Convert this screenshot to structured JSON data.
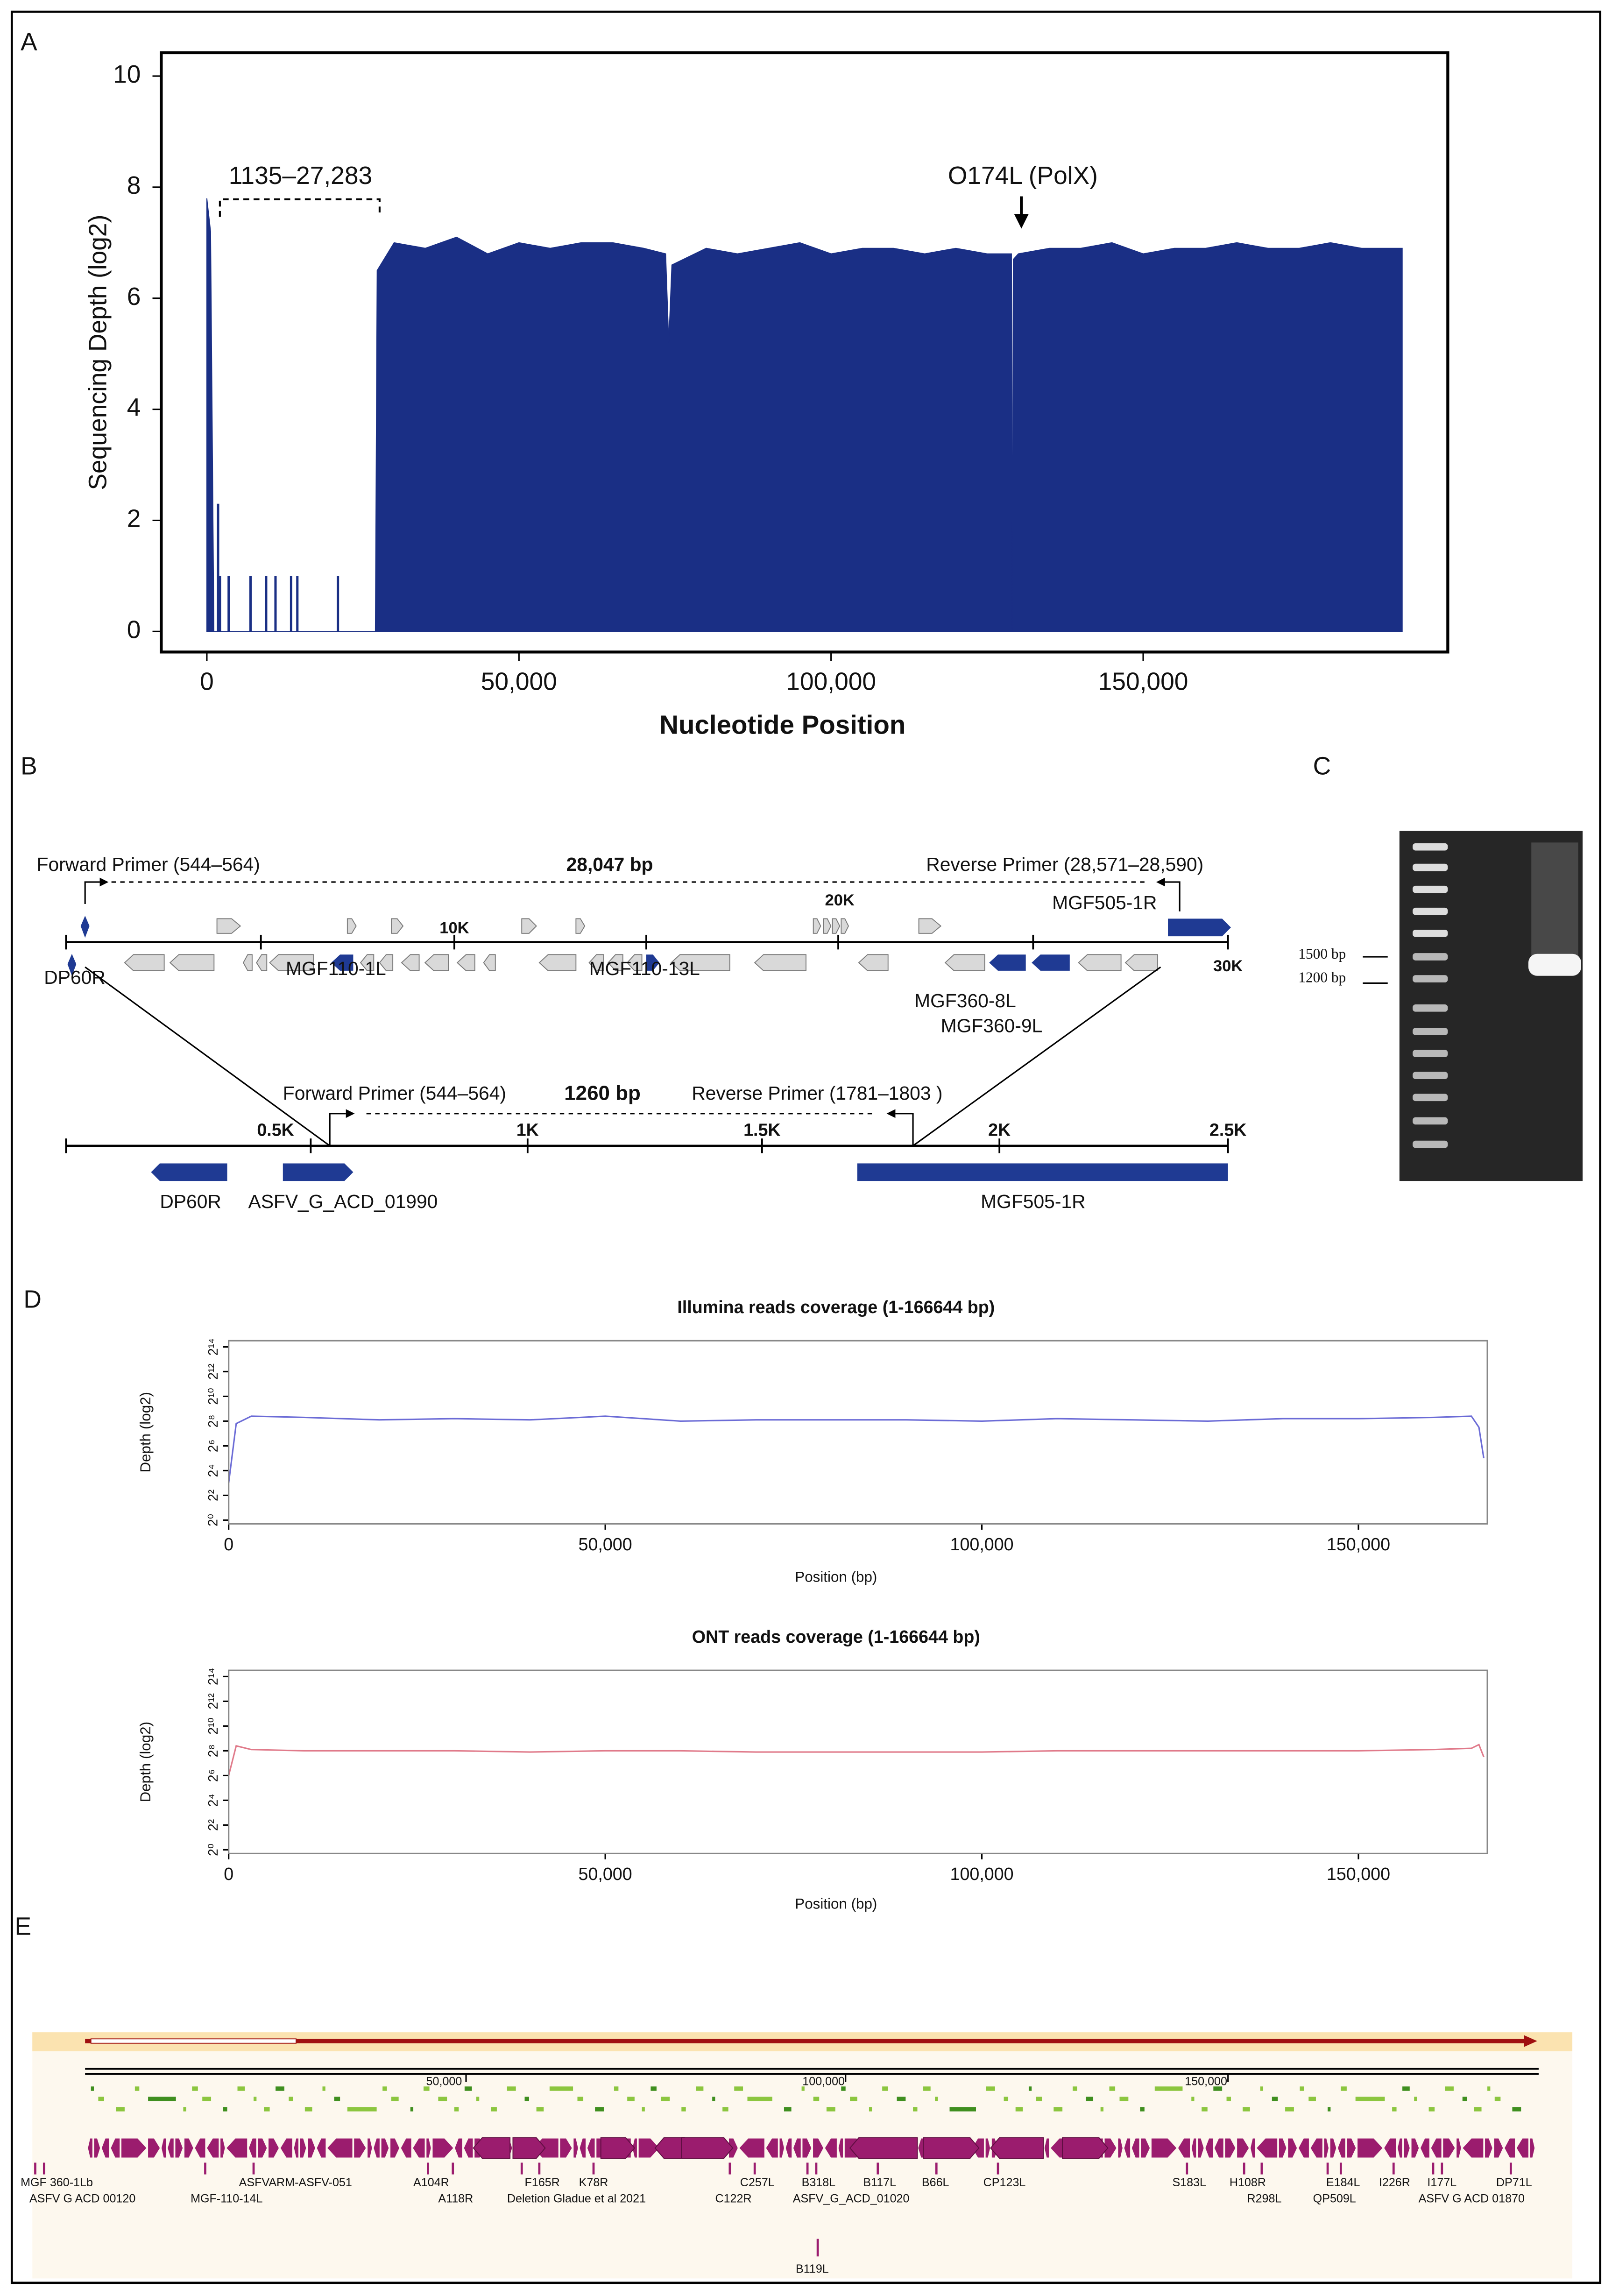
{
  "panel_labels": [
    "A",
    "B",
    "C",
    "D",
    "E"
  ],
  "chart_data": [
    {
      "type": "area",
      "color": "#1a2f85",
      "ylabel": "Sequencing Depth (log2)",
      "xlabel": "Nucleotide Position",
      "x": [
        0,
        600,
        1135,
        27000,
        27283,
        30000,
        35000,
        40000,
        45000,
        50000,
        55000,
        60000,
        65000,
        70000,
        73500,
        74000,
        74500,
        80000,
        85000,
        90000,
        95000,
        100000,
        105000,
        110000,
        115000,
        120000,
        125000,
        128900,
        129000,
        129200,
        130000,
        135000,
        140000,
        145000,
        150000,
        155000,
        160000,
        165000,
        170000,
        175000,
        180000,
        185000,
        191500
      ],
      "values": [
        7.8,
        7.2,
        0,
        0,
        6.5,
        7.0,
        6.9,
        7.1,
        6.8,
        7.0,
        6.9,
        7.0,
        7.0,
        6.9,
        6.8,
        5.2,
        6.6,
        6.9,
        6.8,
        6.9,
        7.0,
        6.8,
        6.9,
        6.9,
        6.8,
        6.9,
        6.8,
        6.8,
        0,
        6.7,
        6.8,
        6.9,
        6.9,
        7.0,
        6.8,
        6.9,
        6.9,
        7.0,
        6.9,
        6.9,
        7.0,
        6.9,
        6.9
      ],
      "spikes": {
        "x": [
          1800,
          2100,
          3500,
          7000,
          9500,
          11000,
          13500,
          14500,
          21000
        ],
        "values": [
          2.3,
          1,
          1,
          1,
          1,
          1,
          1,
          1,
          1
        ]
      },
      "annotations": [
        "1135–27,283",
        "O174L (PolX)"
      ],
      "xlim": [
        -7300,
        198800
      ],
      "ylim": [
        -0.37,
        10.42
      ],
      "xticks": [
        0,
        {
          "value": 50000,
          "label": "50,000"
        },
        {
          "value": 100000,
          "label": "100,000"
        },
        {
          "value": 150000,
          "label": "150,000"
        }
      ],
      "yticks": [
        0,
        2,
        4,
        6,
        8,
        10
      ]
    },
    {
      "type": "line",
      "color": "#6b6bd6",
      "title": "Illumina reads coverage (1-166644 bp)",
      "ylabel": "Depth (log2)",
      "xlabel": "Position (bp)",
      "x": [
        0,
        1000,
        3000,
        10000,
        20000,
        30000,
        40000,
        50000,
        60000,
        70000,
        80000,
        90000,
        100000,
        110000,
        120000,
        130000,
        140000,
        150000,
        160000,
        165000,
        166000,
        166644
      ],
      "values": [
        3.0,
        7.8,
        8.4,
        8.3,
        8.1,
        8.2,
        8.1,
        8.4,
        8.0,
        8.1,
        8.1,
        8.1,
        8.0,
        8.2,
        8.1,
        8.0,
        8.2,
        8.2,
        8.3,
        8.4,
        7.5,
        5.0
      ],
      "xlim": [
        0,
        167120
      ],
      "ylim": [
        -0.3,
        14.5
      ],
      "xticks": [
        0,
        {
          "value": 50000,
          "label": "50,000"
        },
        {
          "value": 100000,
          "label": "100,000"
        },
        {
          "value": 150000,
          "label": "150,000"
        }
      ],
      "yticks": [
        {
          "value": 0,
          "label": "2⁰"
        },
        {
          "value": 2,
          "label": "2²"
        },
        {
          "value": 4,
          "label": "2⁴"
        },
        {
          "value": 6,
          "label": "2⁶"
        },
        {
          "value": 8,
          "label": "2⁸"
        },
        {
          "value": 10,
          "label": "2¹⁰"
        },
        {
          "value": 12,
          "label": "2¹²"
        },
        {
          "value": 14,
          "label": "2¹⁴"
        }
      ]
    },
    {
      "type": "line",
      "color": "#e07a8a",
      "title": "ONT reads coverage (1-166644 bp)",
      "ylabel": "Depth (log2)",
      "xlabel": "Position (bp)",
      "x": [
        0,
        1000,
        3000,
        10000,
        20000,
        30000,
        40000,
        50000,
        60000,
        70000,
        80000,
        90000,
        100000,
        110000,
        120000,
        130000,
        140000,
        150000,
        160000,
        165000,
        166000,
        166644
      ],
      "values": [
        6.0,
        8.4,
        8.1,
        8.0,
        8.0,
        8.0,
        7.9,
        8.0,
        8.0,
        7.9,
        7.9,
        7.9,
        7.9,
        8.0,
        8.0,
        8.0,
        8.0,
        8.0,
        8.1,
        8.2,
        8.5,
        7.5
      ],
      "xlim": [
        0,
        167120
      ],
      "ylim": [
        -0.3,
        14.5
      ],
      "xticks": [
        0,
        {
          "value": 50000,
          "label": "50,000"
        },
        {
          "value": 100000,
          "label": "100,000"
        },
        {
          "value": 150000,
          "label": "150,000"
        }
      ],
      "yticks": [
        {
          "value": 0,
          "label": "2⁰"
        },
        {
          "value": 2,
          "label": "2²"
        },
        {
          "value": 4,
          "label": "2⁴"
        },
        {
          "value": 6,
          "label": "2⁶"
        },
        {
          "value": 8,
          "label": "2⁸"
        },
        {
          "value": 10,
          "label": "2¹⁰"
        },
        {
          "value": 12,
          "label": "2¹²"
        },
        {
          "value": 14,
          "label": "2¹⁴"
        }
      ]
    }
  ],
  "panel_b": {
    "upper": {
      "forward_primer": "Forward Primer (544–564)",
      "length": "28,047 bp",
      "reverse_primer": "Reverse Primer (28,571–28,590)",
      "scale": [
        "10K",
        "20K",
        "30K"
      ],
      "genes": [
        "MGF505-1R",
        "DP60R",
        "MGF110-1L",
        "MGF110-13L",
        "MGF360-8L",
        "MGF360-9L"
      ]
    },
    "lower": {
      "forward_primer": "Forward Primer (544–564)",
      "length": "1260 bp",
      "reverse_primer": "Reverse Primer (1781–1803 )",
      "scale": [
        "0.5K",
        "1K",
        "1.5K",
        "2K",
        "2.5K"
      ],
      "genes": [
        "DP60R",
        "ASFV_G_ACD_01990",
        "MGF505-1R"
      ]
    }
  },
  "panel_c": {
    "markers": [
      "1500 bp",
      "1200 bp"
    ]
  },
  "panel_e": {
    "ruler": [
      "50,000",
      "100,000",
      "150,000"
    ],
    "genes": [
      "MGF 360-1Lb",
      "ASFV G ACD 00120",
      "MGF-110-14L",
      "ASFVARM-ASFV-051",
      "A104R",
      "A118R",
      "F165R",
      "Deletion Gladue et al 2021",
      "K78R",
      "C257L",
      "C122R",
      "B318L",
      "ASFV_G_ACD_01020",
      "B117L",
      "B66L",
      "CP123L",
      "S183L",
      "H108R",
      "R298L",
      "E184L",
      "QP509L",
      "I226R",
      "I177L",
      "ASFV G ACD 01870",
      "DP71L",
      "B119L"
    ]
  }
}
